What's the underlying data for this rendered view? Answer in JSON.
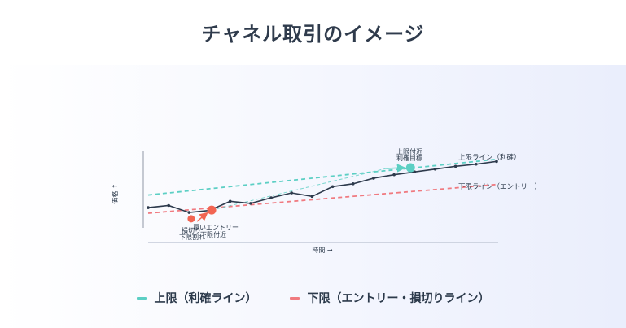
{
  "page": {
    "title": "チャネル取引のイメージ"
  },
  "colors": {
    "upper": "#5ccfc4",
    "lower": "#f07a80",
    "price": "#2d3a4c",
    "entry": "#f26552",
    "exit": "#5ccfc4"
  },
  "chart_data": {
    "type": "line",
    "xlabel": "時間 →",
    "ylabel": "価格 ↑",
    "xlim": [
      0,
      17
    ],
    "ylim": [
      0,
      10
    ],
    "price": {
      "x": [
        0,
        1,
        2,
        3,
        4,
        5,
        6,
        7,
        8,
        9,
        10,
        11,
        12,
        13,
        14,
        15,
        16,
        17
      ],
      "y": [
        2.2,
        2.5,
        1.5,
        1.8,
        3.1,
        2.8,
        3.6,
        4.3,
        3.8,
        5.2,
        5.6,
        6.4,
        6.9,
        7.3,
        7.7,
        8.1,
        8.4,
        8.8
      ]
    },
    "upper_line": {
      "name": "上限ライン（利確）",
      "x": [
        0,
        17
      ],
      "y": [
        4.0,
        9.1
      ]
    },
    "lower_line": {
      "name": "下限ライン（エントリー）",
      "x": [
        0,
        17
      ],
      "y": [
        1.4,
        5.5
      ]
    },
    "markers": {
      "entry": {
        "x": 3.1,
        "y": 1.85
      },
      "stop": {
        "x": 2.1,
        "y": 0.6
      },
      "exit": {
        "x": 12.8,
        "y": 7.9
      }
    },
    "annotations": {
      "stop_a": "損切り",
      "stop_b": "下限割れ",
      "entry_a": "買いエントリー",
      "entry_b": "下限付近",
      "exit_a": "上限付近",
      "exit_b": "利確目標"
    },
    "legend": [
      {
        "label": "上限（利確ライン）",
        "color": "#5ccfc4"
      },
      {
        "label": "下限（エントリー・損切りライン）",
        "color": "#f07a80"
      }
    ]
  }
}
